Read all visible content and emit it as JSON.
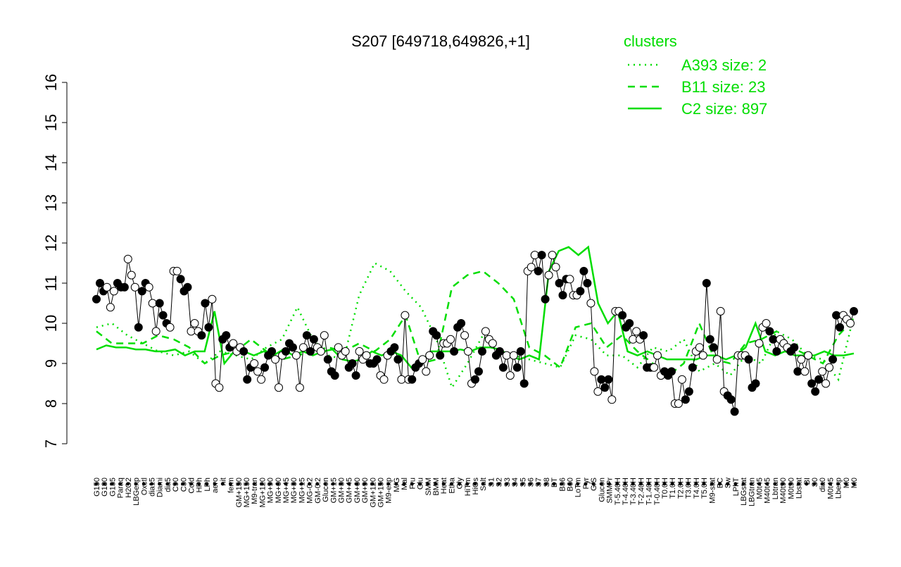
{
  "chart_data": {
    "type": "line",
    "title": "S207 [649718,649826,+1]",
    "xlabel": "",
    "ylabel": "",
    "ylim": [
      7,
      16
    ],
    "yticks": [
      7,
      8,
      9,
      10,
      11,
      12,
      13,
      14,
      15,
      16
    ],
    "grid": false,
    "legend": {
      "title": "clusters",
      "position": "top-right",
      "items": [
        {
          "label": "A393 size: 2",
          "style": "dotted"
        },
        {
          "label": "B11 size: 23",
          "style": "dashed"
        },
        {
          "label": "C2 size: 897",
          "style": "solid"
        }
      ]
    },
    "colors": {
      "clusters": "#00dd00",
      "points": "#000000"
    },
    "x_labels": [
      "G150",
      "G180",
      "G135",
      "Paraq",
      "H2O2",
      "LBGexp",
      "Oxctl",
      "dia15",
      "Diami",
      "dia5",
      "C90",
      "C30",
      "Cold",
      "HPh",
      "LPh",
      "aero",
      "nit",
      "ferm",
      "GM+150",
      "MG+150",
      "M9-tran",
      "MG+120",
      "MG+90",
      "MG+60",
      "MG+45",
      "MG+30",
      "MG+15",
      "MG-0.2",
      "GM-0.2",
      "Glucon",
      "GM+15",
      "GM+30",
      "GM+45",
      "GM+60",
      "GM+90",
      "GM+120",
      "GM+150",
      "M9-exp",
      "M/G",
      "Mal",
      "Fru",
      "Glu",
      "SMM",
      "BMM",
      "Heat",
      "Etha",
      "Gly",
      "HiTm",
      "HiOs",
      "Salt",
      "S1",
      "S2",
      "S3",
      "S4",
      "S5",
      "S6",
      "S7",
      "S8",
      "BT",
      "B36",
      "B60",
      "LoTm",
      "Pyr",
      "G/S",
      "Glucon",
      "SMMPr",
      "T-5.40H",
      "T-4.40H",
      "T-3.40H",
      "T-2.40H",
      "T-1.40H",
      "T-0.40H",
      "T0.0H",
      "T1.0H",
      "T2.0H",
      "T3.0H",
      "T4.0H",
      "T5.0H",
      "M9-stat",
      "BC",
      "Sw",
      "LPhT",
      "LBGstat",
      "LBGtran",
      "M0t45",
      "M40t45",
      "Lbtran",
      "M40t90",
      "M0t90",
      "Lbstat",
      "BI",
      "S0",
      "dia0",
      "M0t45",
      "Lbexp",
      "M0",
      "M0"
    ],
    "x_label_pattern_note": "",
    "series": [
      {
        "name": "",
        "values": [
          10.6,
          11.0,
          10.8,
          10.9,
          10.4,
          10.8,
          11.0,
          10.9,
          10.9,
          11.6,
          11.2,
          10.9,
          9.9,
          10.8,
          11.0,
          10.9,
          10.5,
          9.8,
          10.5,
          10.2,
          10.0,
          9.9,
          11.3,
          11.3,
          11.1,
          10.8,
          10.9,
          9.8,
          10.0,
          9.8,
          9.7,
          10.5,
          9.9,
          10.6,
          8.5,
          8.4,
          9.6,
          9.7,
          9.4,
          9.5,
          9.3,
          9.4,
          9.3,
          8.6,
          8.9,
          9.0,
          8.8,
          8.6,
          8.9,
          9.2,
          9.3,
          9.1,
          8.4,
          9.2,
          9.3,
          9.5,
          9.4,
          9.2,
          8.4,
          9.4,
          9.7,
          9.3,
          9.6,
          9.4,
          9.3,
          9.7,
          9.1,
          8.8,
          8.7,
          9.4,
          9.2,
          9.3,
          8.9,
          9.0,
          8.7,
          9.3,
          9.1,
          9.2,
          9.0,
          9.0,
          9.1,
          8.7,
          8.6,
          9.2,
          9.3,
          9.4,
          9.1,
          8.6,
          10.2,
          8.6,
          8.6,
          8.9,
          9.0,
          9.1,
          8.8,
          9.2,
          9.8,
          9.7,
          9.2,
          9.5,
          9.5,
          9.6,
          9.3,
          9.9,
          10.0,
          9.7,
          9.3,
          8.5,
          8.6,
          8.8,
          9.3,
          9.8,
          9.6,
          9.5,
          9.2,
          9.3,
          8.9,
          9.2,
          8.7,
          9.2,
          8.9,
          9.3,
          8.5,
          11.3,
          11.4,
          11.7,
          11.3,
          11.7,
          10.6,
          11.2,
          11.7,
          11.4,
          11.0,
          10.7,
          11.1,
          11.1,
          10.7,
          10.7,
          10.8,
          11.3,
          11.0,
          10.5,
          8.8,
          8.3,
          8.6,
          8.4,
          8.6,
          8.1,
          10.3,
          10.3,
          10.2,
          9.9,
          10.0,
          9.6,
          9.8,
          9.6,
          9.7,
          8.9,
          8.9,
          8.9,
          9.2,
          8.7,
          8.8,
          8.7,
          8.8,
          8.0,
          8.0,
          8.6,
          8.1,
          8.3,
          8.9,
          9.3,
          9.4,
          9.2,
          11.0,
          9.6,
          9.4,
          9.1,
          10.3,
          8.3,
          8.2,
          8.1,
          7.8,
          9.2,
          9.2,
          9.2,
          9.1,
          8.4,
          8.5,
          9.5,
          9.9,
          10.0,
          9.8,
          9.6,
          9.3,
          9.6,
          9.5,
          9.4,
          9.3,
          9.4,
          8.8,
          9.1,
          8.8,
          9.2,
          8.5,
          8.3,
          8.6,
          8.8,
          8.5,
          8.9,
          9.1,
          10.2,
          9.9,
          10.2,
          10.1,
          10.0,
          10.3
        ]
      }
    ],
    "cluster_curves": [
      {
        "name": "C2 size: 897",
        "style": "solid",
        "values": [
          9.35,
          9.45,
          9.4,
          9.4,
          9.35,
          9.35,
          9.3,
          9.3,
          9.35,
          9.2,
          9.3,
          9.3,
          10.3,
          9.0,
          9.3,
          9.3,
          9.2,
          9.3,
          9.2,
          9.35,
          9.2,
          9.3,
          9.2,
          9.3,
          9.35,
          9.1,
          9.05,
          9.1,
          9.3,
          9.2,
          9.3,
          9.2,
          8.9,
          9.05,
          9.3,
          9.3,
          9.3,
          9.35,
          9.3,
          9.4,
          9.4,
          9.35,
          9.2,
          9.1,
          9.2,
          9.1,
          11.3,
          11.8,
          11.9,
          11.7,
          11.9,
          10.5,
          10.0,
          10.3,
          9.3,
          9.2,
          9.3,
          9.2,
          9.1,
          9.1,
          9.1,
          9.1,
          9.2,
          9.2,
          9.1,
          9.2,
          9.4,
          10.0,
          9.3,
          9.2,
          9.3,
          9.2,
          9.2,
          9.2,
          9.3,
          9.2,
          9.2,
          9.25
        ]
      },
      {
        "name": "B11 size: 23",
        "style": "dashed",
        "values": [
          9.8,
          9.5,
          9.5,
          9.5,
          9.7,
          9.6,
          9.4,
          9.0,
          9.2,
          9.3,
          9.6,
          9.3,
          9.1,
          9.2,
          9.3,
          9.4,
          9.3,
          9.5,
          9.3,
          9.6,
          10.2,
          9.0,
          9.1,
          10.9,
          11.2,
          11.3,
          11.0,
          10.6,
          9.4,
          9.2,
          8.9,
          9.9,
          10.0,
          9.4,
          9.7,
          9.3,
          9.0,
          8.7,
          9.0,
          10.0,
          9.1,
          9.0,
          9.5,
          9.6,
          9.8,
          9.4,
          9.2,
          9.0,
          9.7,
          10.1
        ]
      },
      {
        "name": "A393 size: 2",
        "style": "dotted",
        "values": [
          9.9,
          10.0,
          9.7,
          9.5,
          9.3,
          9.2,
          9.3,
          9.0,
          9.3,
          9.2,
          9.1,
          9.4,
          9.6,
          10.4,
          9.6,
          9.2,
          9.1,
          10.7,
          11.5,
          11.3,
          10.8,
          10.4,
          9.6,
          8.4,
          9.0,
          9.7,
          9.3,
          9.2,
          9.1,
          9.0,
          8.9,
          9.7,
          9.6,
          9.2,
          9.2,
          8.9,
          9.4,
          9.3,
          9.6,
          8.8,
          9.0,
          8.7,
          9.2,
          9.0,
          9.8,
          9.6,
          9.2,
          9.1,
          8.6,
          10.2
        ]
      }
    ]
  }
}
